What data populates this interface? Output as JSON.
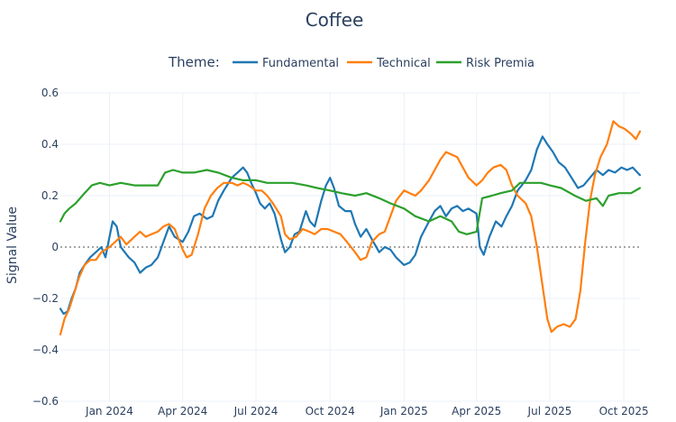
{
  "chart_data": {
    "type": "line",
    "title": "Coffee",
    "xlabel": "",
    "ylabel": "Signal Value",
    "legend": {
      "title": "Theme:",
      "placement": "top-center",
      "orientation": "horizontal"
    },
    "grid": true,
    "zero_line": {
      "value": 0,
      "style": "dotted",
      "color": "#a6a6a6"
    },
    "ylim": [
      -0.6,
      0.6
    ],
    "yticks": [
      -0.6,
      -0.4,
      -0.2,
      0,
      0.2,
      0.4,
      0.6
    ],
    "ytick_labels": [
      "−0.6",
      "−0.4",
      "−0.2",
      "0",
      "0.2",
      "0.4",
      "0.6"
    ],
    "xlim": [
      "2023-11-01",
      "2025-10-21"
    ],
    "xticks": [
      "2024-01-01",
      "2024-04-01",
      "2024-07-01",
      "2024-10-01",
      "2025-01-01",
      "2025-04-01",
      "2025-07-01",
      "2025-10-01"
    ],
    "xtick_labels": [
      "Jan 2024",
      "Apr 2024",
      "Jul 2024",
      "Oct 2024",
      "Jan 2025",
      "Apr 2025",
      "Jul 2025",
      "Oct 2025"
    ],
    "series": [
      {
        "name": "Fundamental",
        "color": "#1f77b4",
        "points": [
          [
            "2023-11-01",
            -0.24
          ],
          [
            "2023-11-05",
            -0.26
          ],
          [
            "2023-11-10",
            -0.25
          ],
          [
            "2023-11-15",
            -0.2
          ],
          [
            "2023-11-20",
            -0.16
          ],
          [
            "2023-11-25",
            -0.1
          ],
          [
            "2023-12-01",
            -0.07
          ],
          [
            "2023-12-08",
            -0.04
          ],
          [
            "2023-12-15",
            -0.02
          ],
          [
            "2023-12-22",
            0.0
          ],
          [
            "2023-12-27",
            -0.04
          ],
          [
            "2024-01-01",
            0.04
          ],
          [
            "2024-01-05",
            0.1
          ],
          [
            "2024-01-10",
            0.08
          ],
          [
            "2024-01-15",
            0.0
          ],
          [
            "2024-01-20",
            -0.02
          ],
          [
            "2024-01-25",
            -0.04
          ],
          [
            "2024-02-01",
            -0.06
          ],
          [
            "2024-02-08",
            -0.1
          ],
          [
            "2024-02-15",
            -0.08
          ],
          [
            "2024-02-22",
            -0.07
          ],
          [
            "2024-03-01",
            -0.04
          ],
          [
            "2024-03-08",
            0.02
          ],
          [
            "2024-03-15",
            0.08
          ],
          [
            "2024-03-22",
            0.04
          ],
          [
            "2024-04-01",
            0.02
          ],
          [
            "2024-04-08",
            0.06
          ],
          [
            "2024-04-15",
            0.12
          ],
          [
            "2024-04-22",
            0.13
          ],
          [
            "2024-05-01",
            0.11
          ],
          [
            "2024-05-08",
            0.12
          ],
          [
            "2024-05-15",
            0.18
          ],
          [
            "2024-05-22",
            0.22
          ],
          [
            "2024-06-01",
            0.27
          ],
          [
            "2024-06-08",
            0.29
          ],
          [
            "2024-06-15",
            0.31
          ],
          [
            "2024-06-20",
            0.29
          ],
          [
            "2024-06-25",
            0.25
          ],
          [
            "2024-07-01",
            0.21
          ],
          [
            "2024-07-06",
            0.17
          ],
          [
            "2024-07-12",
            0.15
          ],
          [
            "2024-07-18",
            0.17
          ],
          [
            "2024-07-24",
            0.13
          ],
          [
            "2024-08-01",
            0.03
          ],
          [
            "2024-08-06",
            -0.02
          ],
          [
            "2024-08-12",
            0.0
          ],
          [
            "2024-08-18",
            0.05
          ],
          [
            "2024-08-24",
            0.06
          ],
          [
            "2024-09-01",
            0.14
          ],
          [
            "2024-09-06",
            0.1
          ],
          [
            "2024-09-12",
            0.08
          ],
          [
            "2024-09-20",
            0.18
          ],
          [
            "2024-09-26",
            0.24
          ],
          [
            "2024-10-01",
            0.27
          ],
          [
            "2024-10-06",
            0.23
          ],
          [
            "2024-10-12",
            0.16
          ],
          [
            "2024-10-20",
            0.14
          ],
          [
            "2024-10-27",
            0.14
          ],
          [
            "2024-11-01",
            0.09
          ],
          [
            "2024-11-08",
            0.04
          ],
          [
            "2024-11-15",
            0.07
          ],
          [
            "2024-11-22",
            0.03
          ],
          [
            "2024-12-01",
            -0.02
          ],
          [
            "2024-12-08",
            0.0
          ],
          [
            "2024-12-15",
            -0.01
          ],
          [
            "2024-12-22",
            -0.04
          ],
          [
            "2025-01-01",
            -0.07
          ],
          [
            "2025-01-08",
            -0.06
          ],
          [
            "2025-01-15",
            -0.03
          ],
          [
            "2025-01-22",
            0.04
          ],
          [
            "2025-02-01",
            0.1
          ],
          [
            "2025-02-08",
            0.14
          ],
          [
            "2025-02-15",
            0.16
          ],
          [
            "2025-02-22",
            0.12
          ],
          [
            "2025-03-01",
            0.15
          ],
          [
            "2025-03-08",
            0.16
          ],
          [
            "2025-03-15",
            0.14
          ],
          [
            "2025-03-22",
            0.15
          ],
          [
            "2025-04-01",
            0.13
          ],
          [
            "2025-04-05",
            0.0
          ],
          [
            "2025-04-10",
            -0.03
          ],
          [
            "2025-04-17",
            0.04
          ],
          [
            "2025-04-25",
            0.1
          ],
          [
            "2025-05-02",
            0.08
          ],
          [
            "2025-05-08",
            0.12
          ],
          [
            "2025-05-15",
            0.16
          ],
          [
            "2025-05-22",
            0.22
          ],
          [
            "2025-06-01",
            0.26
          ],
          [
            "2025-06-08",
            0.3
          ],
          [
            "2025-06-15",
            0.38
          ],
          [
            "2025-06-22",
            0.43
          ],
          [
            "2025-06-28",
            0.4
          ],
          [
            "2025-07-05",
            0.37
          ],
          [
            "2025-07-12",
            0.33
          ],
          [
            "2025-07-20",
            0.31
          ],
          [
            "2025-07-28",
            0.27
          ],
          [
            "2025-08-05",
            0.23
          ],
          [
            "2025-08-12",
            0.24
          ],
          [
            "2025-08-20",
            0.27
          ],
          [
            "2025-08-28",
            0.3
          ],
          [
            "2025-09-05",
            0.28
          ],
          [
            "2025-09-12",
            0.3
          ],
          [
            "2025-09-20",
            0.29
          ],
          [
            "2025-09-28",
            0.31
          ],
          [
            "2025-10-05",
            0.3
          ],
          [
            "2025-10-12",
            0.31
          ],
          [
            "2025-10-21",
            0.28
          ]
        ]
      },
      {
        "name": "Technical",
        "color": "#ff7f0e",
        "points": [
          [
            "2023-11-01",
            -0.34
          ],
          [
            "2023-11-06",
            -0.28
          ],
          [
            "2023-11-12",
            -0.24
          ],
          [
            "2023-11-18",
            -0.18
          ],
          [
            "2023-11-24",
            -0.12
          ],
          [
            "2023-12-01",
            -0.07
          ],
          [
            "2023-12-08",
            -0.05
          ],
          [
            "2023-12-15",
            -0.05
          ],
          [
            "2023-12-22",
            -0.02
          ],
          [
            "2024-01-01",
            0.0
          ],
          [
            "2024-01-08",
            0.02
          ],
          [
            "2024-01-15",
            0.04
          ],
          [
            "2024-01-22",
            0.01
          ],
          [
            "2024-02-01",
            0.04
          ],
          [
            "2024-02-08",
            0.06
          ],
          [
            "2024-02-15",
            0.04
          ],
          [
            "2024-02-22",
            0.05
          ],
          [
            "2024-03-01",
            0.06
          ],
          [
            "2024-03-08",
            0.08
          ],
          [
            "2024-03-15",
            0.09
          ],
          [
            "2024-03-22",
            0.07
          ],
          [
            "2024-04-01",
            -0.01
          ],
          [
            "2024-04-06",
            -0.04
          ],
          [
            "2024-04-12",
            -0.03
          ],
          [
            "2024-04-20",
            0.05
          ],
          [
            "2024-04-28",
            0.15
          ],
          [
            "2024-05-06",
            0.2
          ],
          [
            "2024-05-14",
            0.23
          ],
          [
            "2024-05-22",
            0.25
          ],
          [
            "2024-06-01",
            0.25
          ],
          [
            "2024-06-08",
            0.24
          ],
          [
            "2024-06-15",
            0.25
          ],
          [
            "2024-06-22",
            0.24
          ],
          [
            "2024-07-01",
            0.22
          ],
          [
            "2024-07-08",
            0.22
          ],
          [
            "2024-07-15",
            0.2
          ],
          [
            "2024-07-22",
            0.17
          ],
          [
            "2024-08-01",
            0.12
          ],
          [
            "2024-08-06",
            0.05
          ],
          [
            "2024-08-12",
            0.03
          ],
          [
            "2024-08-20",
            0.04
          ],
          [
            "2024-08-28",
            0.07
          ],
          [
            "2024-09-05",
            0.06
          ],
          [
            "2024-09-12",
            0.05
          ],
          [
            "2024-09-20",
            0.07
          ],
          [
            "2024-09-28",
            0.07
          ],
          [
            "2024-10-06",
            0.06
          ],
          [
            "2024-10-14",
            0.05
          ],
          [
            "2024-10-22",
            0.02
          ],
          [
            "2024-11-01",
            -0.02
          ],
          [
            "2024-11-08",
            -0.05
          ],
          [
            "2024-11-15",
            -0.04
          ],
          [
            "2024-11-22",
            0.02
          ],
          [
            "2024-12-01",
            0.05
          ],
          [
            "2024-12-08",
            0.06
          ],
          [
            "2024-12-15",
            0.12
          ],
          [
            "2024-12-22",
            0.18
          ],
          [
            "2025-01-01",
            0.22
          ],
          [
            "2025-01-08",
            0.21
          ],
          [
            "2025-01-15",
            0.2
          ],
          [
            "2025-01-22",
            0.22
          ],
          [
            "2025-02-01",
            0.26
          ],
          [
            "2025-02-08",
            0.3
          ],
          [
            "2025-02-15",
            0.34
          ],
          [
            "2025-02-22",
            0.37
          ],
          [
            "2025-03-01",
            0.36
          ],
          [
            "2025-03-08",
            0.35
          ],
          [
            "2025-03-15",
            0.31
          ],
          [
            "2025-03-22",
            0.27
          ],
          [
            "2025-04-01",
            0.24
          ],
          [
            "2025-04-08",
            0.26
          ],
          [
            "2025-04-15",
            0.29
          ],
          [
            "2025-04-22",
            0.31
          ],
          [
            "2025-05-01",
            0.32
          ],
          [
            "2025-05-08",
            0.3
          ],
          [
            "2025-05-15",
            0.24
          ],
          [
            "2025-05-22",
            0.2
          ],
          [
            "2025-06-01",
            0.17
          ],
          [
            "2025-06-08",
            0.12
          ],
          [
            "2025-06-15",
            0.0
          ],
          [
            "2025-06-22",
            -0.15
          ],
          [
            "2025-06-28",
            -0.28
          ],
          [
            "2025-07-03",
            -0.33
          ],
          [
            "2025-07-10",
            -0.31
          ],
          [
            "2025-07-18",
            -0.3
          ],
          [
            "2025-07-26",
            -0.31
          ],
          [
            "2025-08-02",
            -0.28
          ],
          [
            "2025-08-08",
            -0.17
          ],
          [
            "2025-08-14",
            0.02
          ],
          [
            "2025-08-20",
            0.18
          ],
          [
            "2025-08-26",
            0.28
          ],
          [
            "2025-09-02",
            0.35
          ],
          [
            "2025-09-10",
            0.4
          ],
          [
            "2025-09-18",
            0.49
          ],
          [
            "2025-09-25",
            0.47
          ],
          [
            "2025-10-02",
            0.46
          ],
          [
            "2025-10-10",
            0.44
          ],
          [
            "2025-10-16",
            0.42
          ],
          [
            "2025-10-21",
            0.45
          ]
        ]
      },
      {
        "name": "Risk Premia",
        "color": "#2ca02c",
        "points": [
          [
            "2023-11-01",
            0.1
          ],
          [
            "2023-11-06",
            0.13
          ],
          [
            "2023-11-12",
            0.15
          ],
          [
            "2023-11-20",
            0.17
          ],
          [
            "2023-12-01",
            0.21
          ],
          [
            "2023-12-10",
            0.24
          ],
          [
            "2023-12-20",
            0.25
          ],
          [
            "2024-01-01",
            0.24
          ],
          [
            "2024-01-15",
            0.25
          ],
          [
            "2024-02-01",
            0.24
          ],
          [
            "2024-02-15",
            0.24
          ],
          [
            "2024-03-01",
            0.24
          ],
          [
            "2024-03-10",
            0.29
          ],
          [
            "2024-03-20",
            0.3
          ],
          [
            "2024-04-01",
            0.29
          ],
          [
            "2024-04-15",
            0.29
          ],
          [
            "2024-05-01",
            0.3
          ],
          [
            "2024-05-15",
            0.29
          ],
          [
            "2024-06-01",
            0.27
          ],
          [
            "2024-06-15",
            0.26
          ],
          [
            "2024-07-01",
            0.26
          ],
          [
            "2024-07-15",
            0.25
          ],
          [
            "2024-08-01",
            0.25
          ],
          [
            "2024-08-15",
            0.25
          ],
          [
            "2024-09-01",
            0.24
          ],
          [
            "2024-09-15",
            0.23
          ],
          [
            "2024-10-01",
            0.22
          ],
          [
            "2024-10-15",
            0.21
          ],
          [
            "2024-11-01",
            0.2
          ],
          [
            "2024-11-15",
            0.21
          ],
          [
            "2024-12-01",
            0.19
          ],
          [
            "2024-12-15",
            0.17
          ],
          [
            "2025-01-01",
            0.15
          ],
          [
            "2025-01-15",
            0.12
          ],
          [
            "2025-02-01",
            0.1
          ],
          [
            "2025-02-15",
            0.12
          ],
          [
            "2025-03-01",
            0.1
          ],
          [
            "2025-03-10",
            0.06
          ],
          [
            "2025-03-20",
            0.05
          ],
          [
            "2025-04-01",
            0.06
          ],
          [
            "2025-04-08",
            0.19
          ],
          [
            "2025-04-20",
            0.2
          ],
          [
            "2025-05-01",
            0.21
          ],
          [
            "2025-05-15",
            0.22
          ],
          [
            "2025-05-25",
            0.25
          ],
          [
            "2025-06-05",
            0.25
          ],
          [
            "2025-06-20",
            0.25
          ],
          [
            "2025-07-01",
            0.24
          ],
          [
            "2025-07-15",
            0.23
          ],
          [
            "2025-08-01",
            0.2
          ],
          [
            "2025-08-15",
            0.18
          ],
          [
            "2025-08-28",
            0.19
          ],
          [
            "2025-09-05",
            0.16
          ],
          [
            "2025-09-12",
            0.2
          ],
          [
            "2025-09-25",
            0.21
          ],
          [
            "2025-10-10",
            0.21
          ],
          [
            "2025-10-21",
            0.23
          ]
        ]
      }
    ]
  }
}
